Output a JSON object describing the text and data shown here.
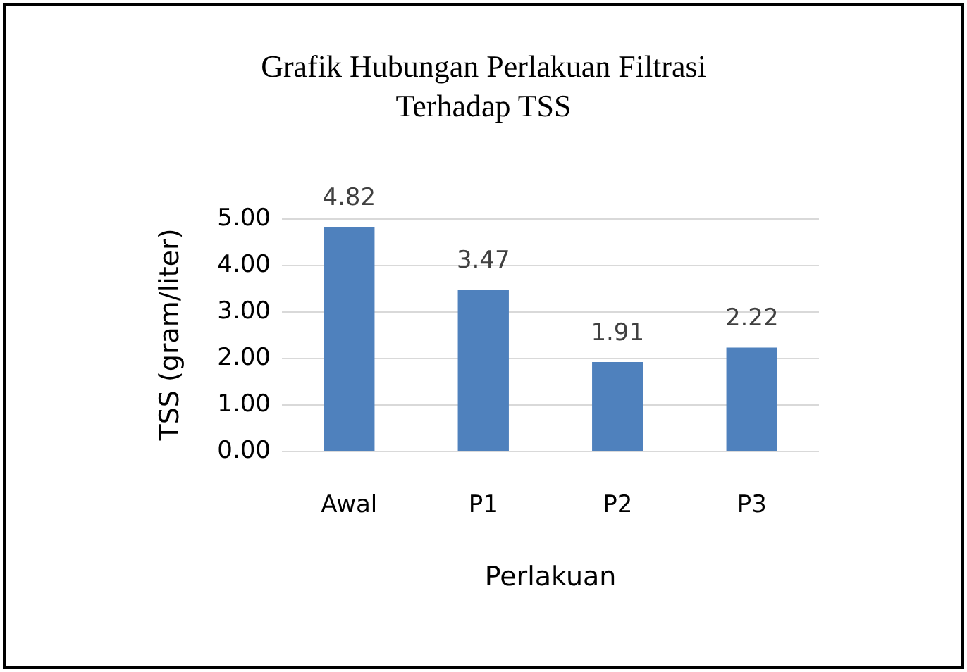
{
  "chart_data": {
    "type": "bar",
    "title": "Grafik Hubungan Perlakuan Filtrasi\nTerhadap TSS",
    "xlabel": "Perlakuan",
    "ylabel": "TSS (gram/liter)",
    "categories": [
      "Awal",
      "P1",
      "P2",
      "P3"
    ],
    "values": [
      4.82,
      3.47,
      1.91,
      2.22
    ],
    "color": "#4f81bd",
    "ylim": [
      0,
      5
    ],
    "yticks": [
      {
        "value": 0,
        "label": "0.00"
      },
      {
        "value": 1,
        "label": "1.00"
      },
      {
        "value": 2,
        "label": "2.00"
      },
      {
        "value": 3,
        "label": "3.00"
      },
      {
        "value": 4,
        "label": "4.00"
      },
      {
        "value": 5,
        "label": "5.00"
      }
    ],
    "grid": true,
    "data_labels": true
  }
}
